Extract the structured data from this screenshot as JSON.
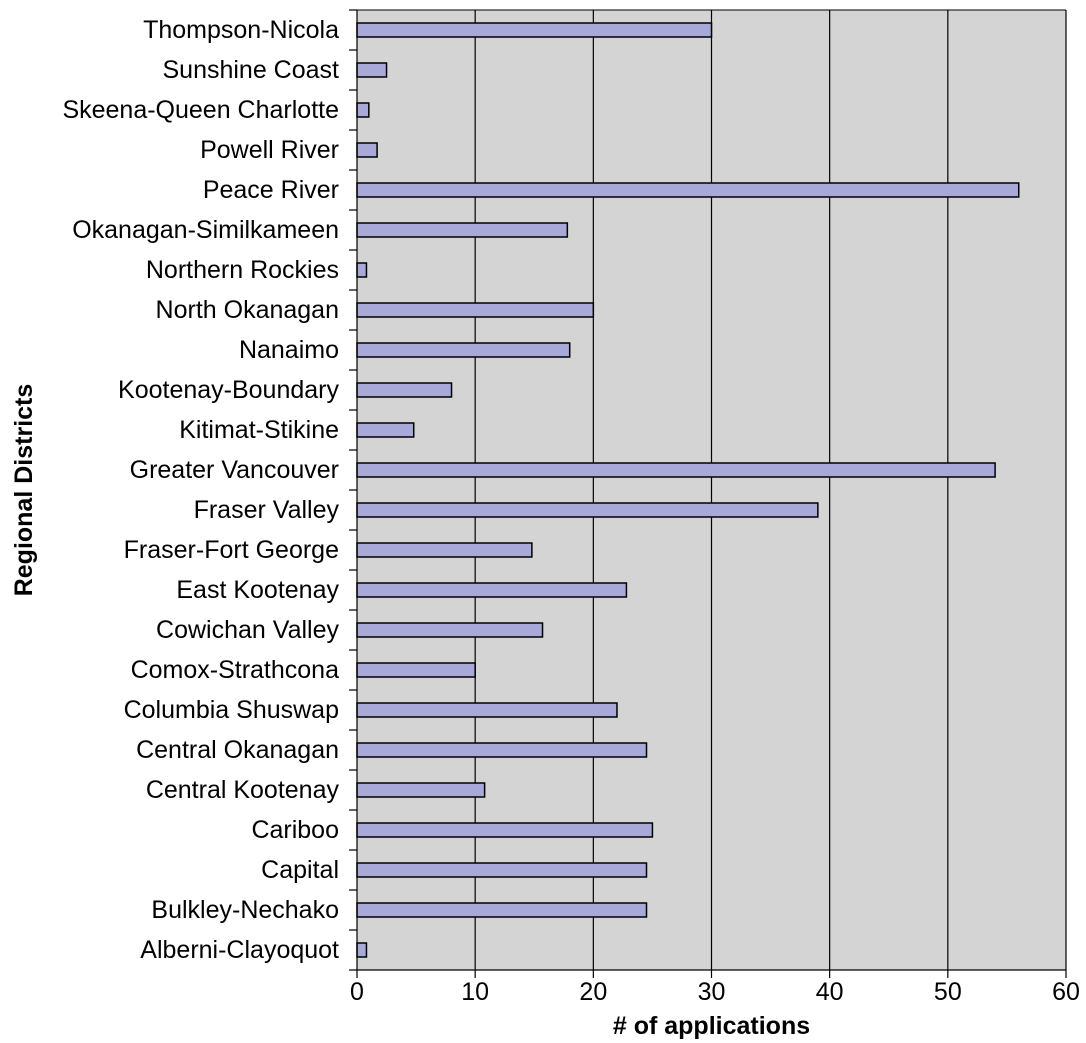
{
  "chart_data": {
    "type": "bar",
    "orientation": "horizontal",
    "xlabel": "# of applications",
    "ylabel": "Regional Districts",
    "xlim": [
      0,
      60
    ],
    "xticks": [
      0,
      10,
      20,
      30,
      40,
      50,
      60
    ],
    "grid": "vertical",
    "legend": "none",
    "bar_color": "#a9a9d9",
    "plot_background": "#d4d4d4",
    "categories": [
      "Thompson-Nicola",
      "Sunshine Coast",
      "Skeena-Queen Charlotte",
      "Powell River",
      "Peace River",
      "Okanagan-Similkameen",
      "Northern Rockies",
      "North Okanagan",
      "Nanaimo",
      "Kootenay-Boundary",
      "Kitimat-Stikine",
      "Greater Vancouver",
      "Fraser Valley",
      "Fraser-Fort George",
      "East Kootenay",
      "Cowichan Valley",
      "Comox-Strathcona",
      "Columbia Shuswap",
      "Central Okanagan",
      "Central Kootenay",
      "Cariboo",
      "Capital",
      "Bulkley-Nechako",
      "Alberni-Clayoquot"
    ],
    "values": [
      30,
      2.5,
      1,
      1.7,
      56,
      17.8,
      0.8,
      20,
      18,
      8,
      4.8,
      54,
      39,
      14.8,
      22.8,
      15.7,
      10,
      22,
      24.5,
      10.8,
      25,
      24.5,
      24.5,
      0.8
    ]
  }
}
